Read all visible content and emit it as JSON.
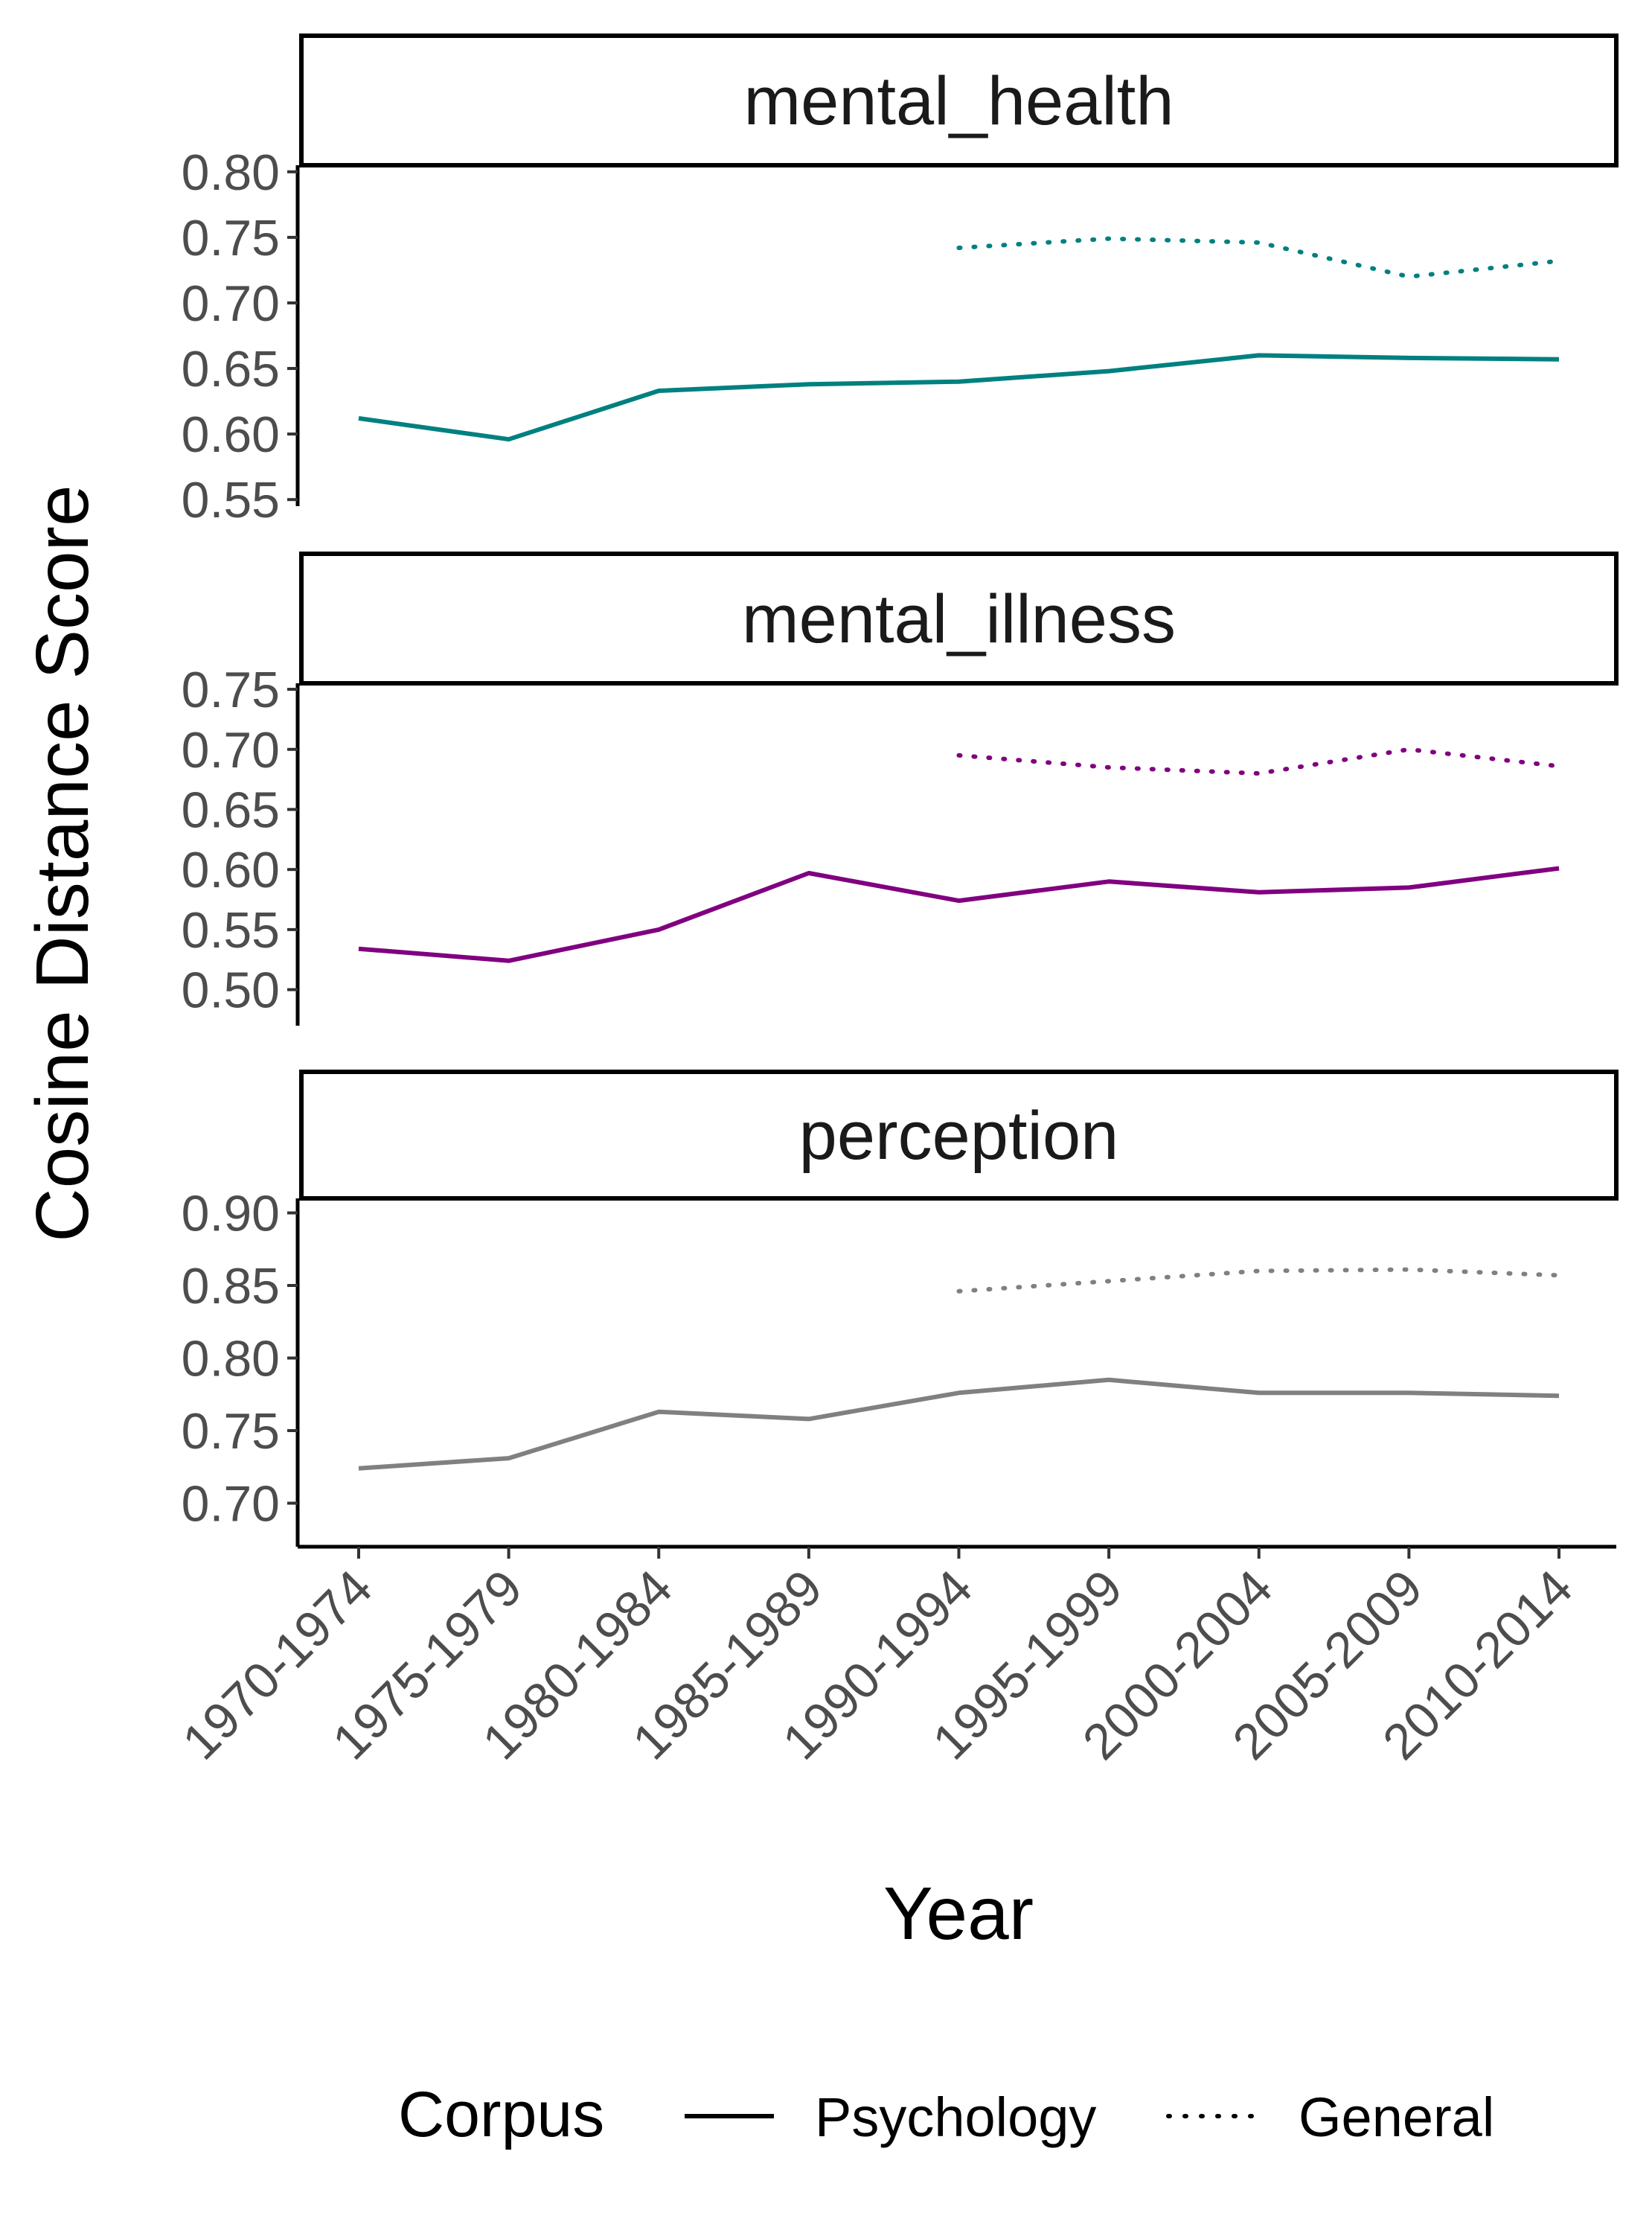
{
  "chart_data": {
    "type": "line",
    "title": "",
    "xlabel": "Year",
    "ylabel": "Cosine Distance Score",
    "categories": [
      "1970-1974",
      "1975-1979",
      "1980-1984",
      "1985-1989",
      "1990-1994",
      "1995-1999",
      "2000-2004",
      "2005-2009",
      "2010-2014"
    ],
    "legend": {
      "title": "Corpus",
      "position": "bottom",
      "entries": [
        {
          "name": "Psychology",
          "linetype": "solid"
        },
        {
          "name": "General",
          "linetype": "dotted"
        }
      ]
    },
    "panels": [
      {
        "label": "mental_health",
        "color": "#008080",
        "ylim": [
          0.545,
          0.805
        ],
        "yticks": [
          "0.80",
          "0.75",
          "0.70",
          "0.65",
          "0.60",
          "0.55"
        ],
        "series": [
          {
            "name": "Psychology",
            "values": [
              0.612,
              0.596,
              0.633,
              0.638,
              0.64,
              0.648,
              0.66,
              0.658,
              0.657
            ]
          },
          {
            "name": "General",
            "values": [
              null,
              null,
              null,
              null,
              0.742,
              0.749,
              0.746,
              0.72,
              0.732
            ]
          }
        ]
      },
      {
        "label": "mental_illness",
        "color": "#800080",
        "ylim": [
          0.47,
          0.755
        ],
        "yticks": [
          "0.75",
          "0.70",
          "0.65",
          "0.60",
          "0.55",
          "0.50"
        ],
        "series": [
          {
            "name": "Psychology",
            "values": [
              0.534,
              0.524,
              0.55,
              0.597,
              0.574,
              0.59,
              0.581,
              0.585,
              0.601
            ]
          },
          {
            "name": "General",
            "values": [
              null,
              null,
              null,
              null,
              0.695,
              0.685,
              0.68,
              0.7,
              0.686
            ]
          }
        ]
      },
      {
        "label": "perception",
        "color": "#808080",
        "ylim": [
          0.67,
          0.91
        ],
        "yticks": [
          "0.90",
          "0.85",
          "0.80",
          "0.75",
          "0.70"
        ],
        "series": [
          {
            "name": "Psychology",
            "values": [
              0.724,
              0.731,
              0.763,
              0.758,
              0.776,
              0.785,
              0.776,
              0.776,
              0.774
            ]
          },
          {
            "name": "General",
            "values": [
              null,
              null,
              null,
              null,
              0.846,
              0.853,
              0.86,
              0.861,
              0.857
            ]
          }
        ]
      }
    ]
  }
}
